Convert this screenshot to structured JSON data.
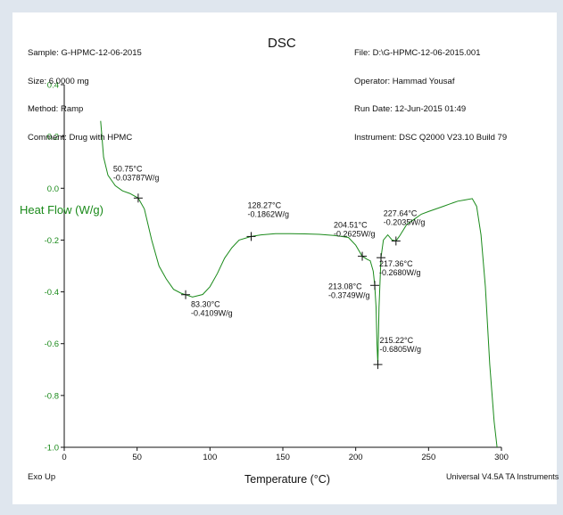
{
  "header": {
    "left": [
      "Sample: G-HPMC-12-06-2015",
      "Size: 6.0000 mg",
      "Method: Ramp",
      "Comment: Drug with HPMC"
    ],
    "right": [
      "File: D:\\G-HPMC-12-06-2015.001",
      "Operator: Hammad Yousaf",
      "Run Date: 12-Jun-2015 01:49",
      "Instrument: DSC Q2000 V23.10 Build 79"
    ]
  },
  "footer": {
    "left": "Exo Up",
    "right": "Universal V4.5A TA Instruments"
  },
  "colors": {
    "curve": "#1a8a1a",
    "axis": "#111111",
    "background": "#ffffff",
    "page": "#dfe6ee"
  },
  "chart_data": {
    "type": "line",
    "title": "DSC",
    "xlabel": "Temperature (°C)",
    "ylabel": "Heat Flow (W/g)",
    "xlim": [
      0,
      300
    ],
    "ylim": [
      -1.0,
      0.4
    ],
    "xticks": [
      "0",
      "50",
      "100",
      "150",
      "200",
      "250",
      "300"
    ],
    "yticks": [
      "-1.0",
      "-0.8",
      "-0.6",
      "-0.4",
      "-0.2",
      "0.0",
      "0.2",
      "0.4"
    ],
    "grid": false,
    "series": [
      {
        "x": [
          25,
          27,
          30,
          35,
          40,
          45,
          50.75,
          55,
          60,
          65,
          70,
          75,
          80,
          83.3,
          88,
          95,
          100,
          105,
          110,
          115,
          120,
          128.27,
          135,
          145,
          155,
          165,
          175,
          185,
          195,
          200,
          204.51,
          208,
          210,
          212,
          213.08,
          214,
          214.6,
          215.22,
          216,
          217.36,
          219,
          222,
          225,
          227.64,
          230,
          235,
          240,
          245,
          250,
          255,
          260,
          265,
          270,
          275,
          280,
          283,
          286,
          289,
          292,
          295,
          297
        ],
        "y": [
          0.26,
          0.12,
          0.05,
          0.01,
          -0.01,
          -0.02,
          -0.038,
          -0.08,
          -0.2,
          -0.3,
          -0.35,
          -0.39,
          -0.405,
          -0.411,
          -0.42,
          -0.41,
          -0.38,
          -0.33,
          -0.27,
          -0.23,
          -0.2,
          -0.186,
          -0.18,
          -0.175,
          -0.175,
          -0.176,
          -0.178,
          -0.182,
          -0.19,
          -0.22,
          -0.2625,
          -0.275,
          -0.28,
          -0.32,
          -0.375,
          -0.46,
          -0.6,
          -0.6805,
          -0.46,
          -0.268,
          -0.2,
          -0.18,
          -0.2,
          -0.2035,
          -0.185,
          -0.14,
          -0.12,
          -0.1,
          -0.09,
          -0.08,
          -0.07,
          -0.06,
          -0.05,
          -0.045,
          -0.04,
          -0.07,
          -0.18,
          -0.38,
          -0.68,
          -0.9,
          -1.0
        ]
      }
    ],
    "annotations": [
      {
        "x": 50.75,
        "y": -0.0378,
        "temp": "50.75°C",
        "value": "-0.03787W/g"
      },
      {
        "x": 83.3,
        "y": -0.4109,
        "temp": "83.30°C",
        "value": "-0.4109W/g"
      },
      {
        "x": 128.27,
        "y": -0.1862,
        "temp": "128.27°C",
        "value": "-0.1862W/g"
      },
      {
        "x": 204.51,
        "y": -0.2625,
        "temp": "204.51°C",
        "value": "-0.2625W/g"
      },
      {
        "x": 213.08,
        "y": -0.3749,
        "temp": "213.08°C",
        "value": "-0.3749W/g"
      },
      {
        "x": 215.22,
        "y": -0.6805,
        "temp": "215.22°C",
        "value": "-0.6805W/g"
      },
      {
        "x": 217.36,
        "y": -0.268,
        "temp": "217.36°C",
        "value": "-0.2680W/g"
      },
      {
        "x": 227.64,
        "y": -0.2035,
        "temp": "227.64°C",
        "value": "-0.2035W/g"
      }
    ]
  }
}
